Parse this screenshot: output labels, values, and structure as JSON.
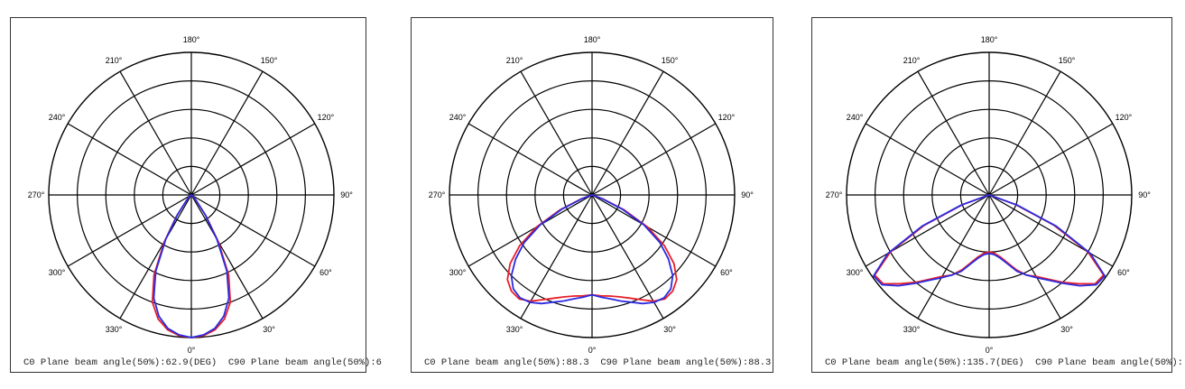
{
  "colors": {
    "c0": "#e8202a",
    "c90": "#2a2ae0",
    "grid": "#000000"
  },
  "chart_data": [
    {
      "type": "polar",
      "angle_labels": [
        "180°",
        "150°",
        "120°",
        "90°",
        "60°",
        "30°",
        "0°",
        "330°",
        "300°",
        "270°",
        "240°",
        "210°"
      ],
      "caption": "C0 Plane beam angle(50%):62.9(DEG)  C90 Plane beam angle(50%):6",
      "grid_rings": 5,
      "rmax": 1.0,
      "series": [
        {
          "color": "c0",
          "r": [
            1.0,
            0.99,
            0.96,
            0.9,
            0.8,
            0.62,
            0.38,
            0.18,
            0.06,
            0.02,
            0.0
          ]
        },
        {
          "color": "c90",
          "r": [
            1.0,
            0.985,
            0.95,
            0.88,
            0.77,
            0.59,
            0.36,
            0.17,
            0.06,
            0.02,
            0.0
          ]
        }
      ],
      "theta": [
        0,
        5,
        10,
        15,
        20,
        25,
        30,
        35,
        40,
        50,
        60
      ]
    },
    {
      "type": "polar",
      "angle_labels": [
        "180°",
        "150°",
        "120°",
        "90°",
        "60°",
        "30°",
        "0°",
        "330°",
        "300°",
        "270°",
        "240°",
        "210°"
      ],
      "caption": "C0 Plane beam angle(50%):88.3  C90 Plane beam angle(50%):88.3",
      "grid_rings": 5,
      "rmax": 1.0,
      "series": [
        {
          "color": "c0",
          "r": [
            0.7,
            0.71,
            0.72,
            0.74,
            0.77,
            0.81,
            0.86,
            0.89,
            0.88,
            0.84,
            0.75,
            0.62,
            0.45,
            0.25,
            0.08,
            0.0
          ]
        },
        {
          "color": "c90",
          "r": [
            0.7,
            0.72,
            0.74,
            0.77,
            0.8,
            0.84,
            0.87,
            0.88,
            0.86,
            0.8,
            0.7,
            0.58,
            0.42,
            0.23,
            0.07,
            0.0
          ]
        }
      ],
      "theta": [
        0,
        5,
        10,
        15,
        20,
        25,
        30,
        35,
        40,
        45,
        50,
        55,
        60,
        65,
        70,
        75
      ]
    },
    {
      "type": "polar",
      "angle_labels": [
        "180°",
        "150°",
        "120°",
        "90°",
        "60°",
        "30°",
        "0°",
        "330°",
        "300°",
        "270°",
        "240°",
        "210°"
      ],
      "caption": "C0 Plane beam angle(50%):135.7(DEG)  C90 Plane beam angle(50%):",
      "grid_rings": 5,
      "rmax": 1.0,
      "series": [
        {
          "color": "c0",
          "r": [
            0.4,
            0.41,
            0.44,
            0.49,
            0.56,
            0.62,
            0.66,
            0.72,
            0.8,
            0.88,
            0.97,
            0.98,
            0.8,
            0.5,
            0.2,
            0.0
          ]
        },
        {
          "color": "c90",
          "r": [
            0.41,
            0.42,
            0.45,
            0.5,
            0.57,
            0.62,
            0.67,
            0.73,
            0.81,
            0.9,
            0.98,
            0.99,
            0.82,
            0.52,
            0.21,
            0.0
          ]
        }
      ],
      "theta": [
        0,
        5,
        10,
        15,
        20,
        25,
        30,
        35,
        40,
        45,
        50,
        55,
        60,
        65,
        70,
        75
      ]
    }
  ]
}
